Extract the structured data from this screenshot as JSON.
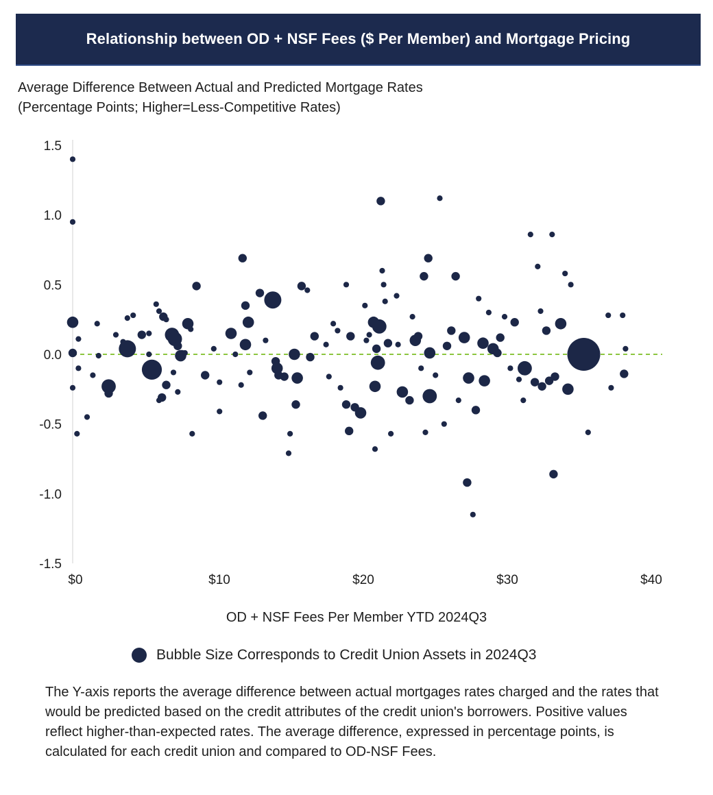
{
  "header": {
    "title": "Relationship between OD + NSF Fees ($ Per Member) and Mortgage Pricing"
  },
  "subtitle": {
    "line1": "Average Difference Between Actual and Predicted Mortgage Rates",
    "line2": "(Percentage Points; Higher=Less-Competitive Rates)"
  },
  "legend": {
    "label": "Bubble Size Corresponds to Credit Union Assets in 2024Q3",
    "icon": "bubble-icon"
  },
  "note": "The Y-axis reports the average difference between actual mortgages rates charged and the rates that would be predicted based on the credit attributes of the credit union's borrowers. Positive values reflect higher-than-expected rates. The average difference, expressed in percentage points, is calculated for each credit union and compared to OD-NSF Fees.",
  "colors": {
    "bubble": "#1c2747",
    "zero_line": "#8cc63f",
    "banner": "#1c2a4e",
    "axis": "#d0d0d0"
  },
  "chart_data": {
    "type": "scatter",
    "title": "",
    "xlabel": "OD + NSF Fees Per Member YTD 2024Q3",
    "ylabel": "",
    "xlim": [
      0,
      40
    ],
    "ylim": [
      -1.5,
      1.5
    ],
    "x_ticks": [
      0,
      10,
      20,
      30,
      40
    ],
    "x_tick_labels": [
      "$0",
      "$10",
      "$20",
      "$30",
      "$40"
    ],
    "y_ticks": [
      1.5,
      1.0,
      0.5,
      0.0,
      -0.5,
      -1.0,
      -1.5
    ],
    "y_tick_labels": [
      "1.5",
      "1.0",
      "0.5",
      "0.0",
      "-0.5",
      "-1.0",
      "-1.5"
    ],
    "reference_line": {
      "y": 0.0,
      "style": "dashed"
    },
    "grid": false,
    "legend_position": "bottom",
    "size_variable": "Credit Union Assets in 2024Q3 (relative)",
    "points": [
      {
        "x": 0.0,
        "y": 1.4,
        "s": 1
      },
      {
        "x": 0.0,
        "y": 0.95,
        "s": 1
      },
      {
        "x": 0.0,
        "y": 0.23,
        "s": 3
      },
      {
        "x": 0.0,
        "y": 0.01,
        "s": 2
      },
      {
        "x": 0.0,
        "y": -0.24,
        "s": 1
      },
      {
        "x": 0.4,
        "y": 0.11,
        "s": 1
      },
      {
        "x": 0.4,
        "y": -0.1,
        "s": 1
      },
      {
        "x": 0.3,
        "y": -0.57,
        "s": 1
      },
      {
        "x": 1.0,
        "y": -0.45,
        "s": 1
      },
      {
        "x": 1.4,
        "y": -0.15,
        "s": 1
      },
      {
        "x": 1.7,
        "y": 0.22,
        "s": 1
      },
      {
        "x": 1.8,
        "y": -0.01,
        "s": 1
      },
      {
        "x": 2.5,
        "y": -0.23,
        "s": 4
      },
      {
        "x": 2.5,
        "y": -0.28,
        "s": 2
      },
      {
        "x": 3.0,
        "y": 0.14,
        "s": 1
      },
      {
        "x": 3.5,
        "y": 0.09,
        "s": 1
      },
      {
        "x": 3.8,
        "y": 0.04,
        "s": 5
      },
      {
        "x": 3.8,
        "y": 0.26,
        "s": 1
      },
      {
        "x": 4.2,
        "y": 0.28,
        "s": 1
      },
      {
        "x": 4.8,
        "y": 0.14,
        "s": 2
      },
      {
        "x": 5.3,
        "y": 0.0,
        "s": 1
      },
      {
        "x": 5.3,
        "y": 0.15,
        "s": 1
      },
      {
        "x": 5.5,
        "y": -0.11,
        "s": 6
      },
      {
        "x": 5.8,
        "y": 0.36,
        "s": 1
      },
      {
        "x": 6.0,
        "y": 0.31,
        "s": 1
      },
      {
        "x": 6.0,
        "y": -0.33,
        "s": 1
      },
      {
        "x": 6.2,
        "y": -0.31,
        "s": 2
      },
      {
        "x": 6.3,
        "y": 0.27,
        "s": 2
      },
      {
        "x": 6.5,
        "y": 0.25,
        "s": 1
      },
      {
        "x": 6.5,
        "y": -0.22,
        "s": 2
      },
      {
        "x": 6.9,
        "y": 0.14,
        "s": 4
      },
      {
        "x": 7.1,
        "y": 0.11,
        "s": 4
      },
      {
        "x": 7.3,
        "y": 0.06,
        "s": 2
      },
      {
        "x": 7.5,
        "y": -0.01,
        "s": 3
      },
      {
        "x": 7.3,
        "y": -0.27,
        "s": 1
      },
      {
        "x": 7.0,
        "y": -0.13,
        "s": 1
      },
      {
        "x": 7.6,
        "y": 0.0,
        "s": 2
      },
      {
        "x": 7.8,
        "y": 0.01,
        "s": 1
      },
      {
        "x": 8.0,
        "y": 0.22,
        "s": 3
      },
      {
        "x": 8.2,
        "y": 0.18,
        "s": 1
      },
      {
        "x": 8.3,
        "y": -0.57,
        "s": 1
      },
      {
        "x": 8.6,
        "y": 0.49,
        "s": 2
      },
      {
        "x": 9.2,
        "y": -0.15,
        "s": 2
      },
      {
        "x": 9.8,
        "y": 0.04,
        "s": 1
      },
      {
        "x": 10.2,
        "y": -0.2,
        "s": 1
      },
      {
        "x": 10.2,
        "y": -0.41,
        "s": 1
      },
      {
        "x": 11.0,
        "y": 0.15,
        "s": 3
      },
      {
        "x": 11.3,
        "y": 0.0,
        "s": 1
      },
      {
        "x": 11.7,
        "y": -0.22,
        "s": 1
      },
      {
        "x": 11.8,
        "y": 0.69,
        "s": 2
      },
      {
        "x": 12.0,
        "y": 0.35,
        "s": 2
      },
      {
        "x": 12.2,
        "y": 0.23,
        "s": 3
      },
      {
        "x": 12.0,
        "y": 0.07,
        "s": 3
      },
      {
        "x": 12.3,
        "y": -0.13,
        "s": 1
      },
      {
        "x": 13.0,
        "y": 0.44,
        "s": 2
      },
      {
        "x": 13.2,
        "y": -0.44,
        "s": 2
      },
      {
        "x": 13.4,
        "y": 0.1,
        "s": 1
      },
      {
        "x": 13.9,
        "y": 0.39,
        "s": 5
      },
      {
        "x": 14.1,
        "y": -0.05,
        "s": 2
      },
      {
        "x": 14.2,
        "y": -0.1,
        "s": 3
      },
      {
        "x": 14.3,
        "y": -0.15,
        "s": 2
      },
      {
        "x": 14.7,
        "y": -0.16,
        "s": 2
      },
      {
        "x": 15.0,
        "y": -0.71,
        "s": 1
      },
      {
        "x": 15.1,
        "y": -0.57,
        "s": 1
      },
      {
        "x": 15.4,
        "y": 0.0,
        "s": 3
      },
      {
        "x": 15.5,
        "y": -0.36,
        "s": 2
      },
      {
        "x": 15.6,
        "y": -0.17,
        "s": 3
      },
      {
        "x": 15.9,
        "y": 0.49,
        "s": 2
      },
      {
        "x": 16.3,
        "y": 0.46,
        "s": 1
      },
      {
        "x": 16.5,
        "y": -0.02,
        "s": 2
      },
      {
        "x": 16.8,
        "y": 0.13,
        "s": 2
      },
      {
        "x": 17.6,
        "y": 0.07,
        "s": 1
      },
      {
        "x": 17.8,
        "y": -0.16,
        "s": 1
      },
      {
        "x": 18.1,
        "y": 0.22,
        "s": 1
      },
      {
        "x": 18.4,
        "y": 0.17,
        "s": 1
      },
      {
        "x": 18.6,
        "y": -0.24,
        "s": 1
      },
      {
        "x": 19.0,
        "y": 0.5,
        "s": 1
      },
      {
        "x": 19.0,
        "y": -0.36,
        "s": 2
      },
      {
        "x": 19.2,
        "y": -0.55,
        "s": 2
      },
      {
        "x": 19.3,
        "y": 0.13,
        "s": 2
      },
      {
        "x": 19.6,
        "y": -0.38,
        "s": 2
      },
      {
        "x": 20.0,
        "y": -0.42,
        "s": 3
      },
      {
        "x": 20.3,
        "y": 0.35,
        "s": 1
      },
      {
        "x": 20.4,
        "y": 0.1,
        "s": 1
      },
      {
        "x": 20.6,
        "y": 0.14,
        "s": 1
      },
      {
        "x": 20.9,
        "y": 0.23,
        "s": 3
      },
      {
        "x": 21.0,
        "y": -0.68,
        "s": 1
      },
      {
        "x": 21.0,
        "y": -0.23,
        "s": 3
      },
      {
        "x": 21.1,
        "y": 0.04,
        "s": 2
      },
      {
        "x": 21.2,
        "y": -0.06,
        "s": 4
      },
      {
        "x": 21.3,
        "y": 0.2,
        "s": 4
      },
      {
        "x": 21.4,
        "y": 1.1,
        "s": 2
      },
      {
        "x": 21.5,
        "y": 0.6,
        "s": 1
      },
      {
        "x": 21.6,
        "y": 0.5,
        "s": 1
      },
      {
        "x": 21.7,
        "y": 0.38,
        "s": 1
      },
      {
        "x": 21.9,
        "y": 0.08,
        "s": 2
      },
      {
        "x": 22.1,
        "y": -0.57,
        "s": 1
      },
      {
        "x": 22.5,
        "y": 0.42,
        "s": 1
      },
      {
        "x": 22.6,
        "y": 0.07,
        "s": 1
      },
      {
        "x": 22.9,
        "y": -0.27,
        "s": 3
      },
      {
        "x": 23.4,
        "y": -0.33,
        "s": 2
      },
      {
        "x": 23.6,
        "y": 0.27,
        "s": 1
      },
      {
        "x": 23.8,
        "y": 0.1,
        "s": 3
      },
      {
        "x": 24.0,
        "y": 0.13,
        "s": 2
      },
      {
        "x": 24.2,
        "y": -0.1,
        "s": 1
      },
      {
        "x": 24.4,
        "y": 0.56,
        "s": 2
      },
      {
        "x": 24.5,
        "y": -0.56,
        "s": 1
      },
      {
        "x": 24.7,
        "y": 0.69,
        "s": 2
      },
      {
        "x": 24.8,
        "y": -0.3,
        "s": 4
      },
      {
        "x": 24.8,
        "y": 0.01,
        "s": 3
      },
      {
        "x": 25.2,
        "y": -0.15,
        "s": 1
      },
      {
        "x": 25.5,
        "y": 1.12,
        "s": 1
      },
      {
        "x": 25.8,
        "y": -0.5,
        "s": 1
      },
      {
        "x": 26.0,
        "y": 0.06,
        "s": 2
      },
      {
        "x": 26.3,
        "y": 0.17,
        "s": 2
      },
      {
        "x": 26.6,
        "y": 0.56,
        "s": 2
      },
      {
        "x": 26.8,
        "y": -0.33,
        "s": 1
      },
      {
        "x": 27.2,
        "y": 0.12,
        "s": 3
      },
      {
        "x": 27.4,
        "y": -0.92,
        "s": 2
      },
      {
        "x": 27.5,
        "y": -0.17,
        "s": 3
      },
      {
        "x": 27.8,
        "y": -1.15,
        "s": 1
      },
      {
        "x": 28.0,
        "y": -0.4,
        "s": 2
      },
      {
        "x": 28.2,
        "y": 0.4,
        "s": 1
      },
      {
        "x": 28.5,
        "y": 0.08,
        "s": 3
      },
      {
        "x": 28.6,
        "y": -0.19,
        "s": 3
      },
      {
        "x": 28.9,
        "y": 0.3,
        "s": 1
      },
      {
        "x": 29.2,
        "y": 0.04,
        "s": 3
      },
      {
        "x": 29.5,
        "y": 0.01,
        "s": 2
      },
      {
        "x": 29.7,
        "y": 0.12,
        "s": 2
      },
      {
        "x": 30.0,
        "y": 0.27,
        "s": 1
      },
      {
        "x": 30.4,
        "y": -0.1,
        "s": 1
      },
      {
        "x": 30.7,
        "y": 0.23,
        "s": 2
      },
      {
        "x": 31.0,
        "y": -0.18,
        "s": 1
      },
      {
        "x": 31.3,
        "y": -0.33,
        "s": 1
      },
      {
        "x": 31.4,
        "y": -0.1,
        "s": 4
      },
      {
        "x": 31.8,
        "y": 0.86,
        "s": 1
      },
      {
        "x": 32.1,
        "y": -0.2,
        "s": 2
      },
      {
        "x": 32.3,
        "y": 0.63,
        "s": 1
      },
      {
        "x": 32.5,
        "y": 0.31,
        "s": 1
      },
      {
        "x": 32.6,
        "y": -0.23,
        "s": 2
      },
      {
        "x": 32.9,
        "y": 0.17,
        "s": 2
      },
      {
        "x": 33.1,
        "y": -0.19,
        "s": 2
      },
      {
        "x": 33.3,
        "y": 0.86,
        "s": 1
      },
      {
        "x": 33.4,
        "y": -0.86,
        "s": 2
      },
      {
        "x": 33.5,
        "y": -0.16,
        "s": 2
      },
      {
        "x": 33.9,
        "y": 0.22,
        "s": 3
      },
      {
        "x": 34.2,
        "y": 0.58,
        "s": 1
      },
      {
        "x": 34.4,
        "y": -0.25,
        "s": 3
      },
      {
        "x": 34.6,
        "y": 0.5,
        "s": 1
      },
      {
        "x": 35.5,
        "y": 0.0,
        "s": 12
      },
      {
        "x": 35.8,
        "y": -0.56,
        "s": 1
      },
      {
        "x": 36.2,
        "y": 0.05,
        "s": 1
      },
      {
        "x": 37.2,
        "y": 0.28,
        "s": 1
      },
      {
        "x": 37.4,
        "y": -0.24,
        "s": 1
      },
      {
        "x": 38.2,
        "y": 0.28,
        "s": 1
      },
      {
        "x": 38.3,
        "y": -0.14,
        "s": 2
      },
      {
        "x": 38.4,
        "y": 0.04,
        "s": 1
      }
    ]
  }
}
